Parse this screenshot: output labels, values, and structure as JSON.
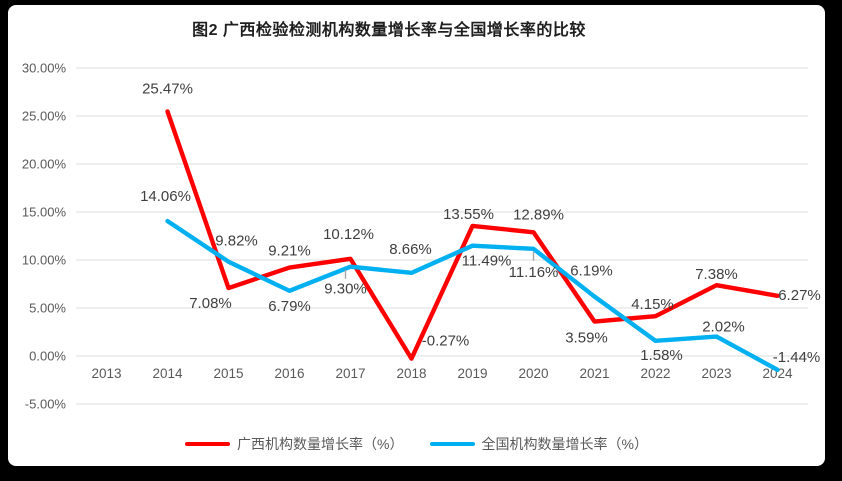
{
  "chart_data": {
    "type": "line",
    "title": "图2 广西检验检测机构数量增长率与全国增长率的比较",
    "categories": [
      "2013",
      "2014",
      "2015",
      "2016",
      "2017",
      "2018",
      "2019",
      "2020",
      "2021",
      "2022",
      "2023",
      "2024"
    ],
    "y_axis": {
      "min": -5,
      "max": 30,
      "step": 5,
      "tick_labels": [
        "30.00%",
        "25.00%",
        "20.00%",
        "15.00%",
        "10.00%",
        "5.00%",
        "0.00%",
        "-5.00%"
      ]
    },
    "grid": true,
    "legend_position": "bottom",
    "colors": {
      "grid": "#DCDCDC",
      "axis_text": "#595959",
      "label_text": "#3f3f3f",
      "leader": "#A6A6A6",
      "frame": "#000000",
      "panel": "#ffffff"
    },
    "series": [
      {
        "name": "广西机构数量增长率（%）",
        "color": "#FF0000",
        "values": [
          null,
          25.47,
          7.08,
          9.21,
          10.12,
          -0.27,
          13.55,
          12.89,
          3.59,
          4.15,
          7.38,
          6.27
        ],
        "labels": [
          null,
          {
            "text": "25.47%",
            "dx": 0,
            "dy": -23
          },
          {
            "text": "7.08%",
            "dx": -18,
            "dy": 15
          },
          {
            "text": "9.21%",
            "dx": 0,
            "dy": -17
          },
          {
            "text": "10.12%",
            "dx": -2,
            "dy": -25
          },
          {
            "text": "-0.27%",
            "dx": 34,
            "dy": -18
          },
          {
            "text": "13.55%",
            "dx": -4,
            "dy": -12
          },
          {
            "text": "12.89%",
            "dx": 5,
            "dy": -18
          },
          {
            "text": "3.59%",
            "dx": -8,
            "dy": 16
          },
          {
            "text": "4.15%",
            "dx": -3,
            "dy": -12
          },
          {
            "text": "7.38%",
            "dx": 0,
            "dy": -11
          },
          {
            "text": "6.27%",
            "dx": 22,
            "dy": -1
          }
        ]
      },
      {
        "name": "全国机构数量增长率（%）",
        "color": "#00B0F0",
        "values": [
          null,
          14.06,
          9.82,
          6.79,
          9.3,
          8.66,
          11.49,
          11.16,
          6.19,
          1.58,
          2.02,
          -1.44
        ],
        "labels": [
          null,
          {
            "text": "14.06%",
            "dx": -2,
            "dy": -25
          },
          {
            "text": "9.82%",
            "dx": 8,
            "dy": -21
          },
          {
            "text": "6.79%",
            "dx": 0,
            "dy": 15
          },
          {
            "text": "9.30%",
            "dx": -5,
            "dy": 22,
            "leader": true
          },
          {
            "text": "8.66%",
            "dx": -1,
            "dy": -24
          },
          {
            "text": "11.49%",
            "dx": 14,
            "dy": 15
          },
          {
            "text": "11.16%",
            "dx": 0,
            "dy": 23,
            "leader": true
          },
          {
            "text": "6.19%",
            "dx": -3,
            "dy": -26
          },
          {
            "text": "1.58%",
            "dx": 6,
            "dy": 14
          },
          {
            "text": "2.02%",
            "dx": 7,
            "dy": -10
          },
          {
            "text": "-1.44%",
            "dx": 19,
            "dy": -13
          }
        ]
      }
    ]
  }
}
